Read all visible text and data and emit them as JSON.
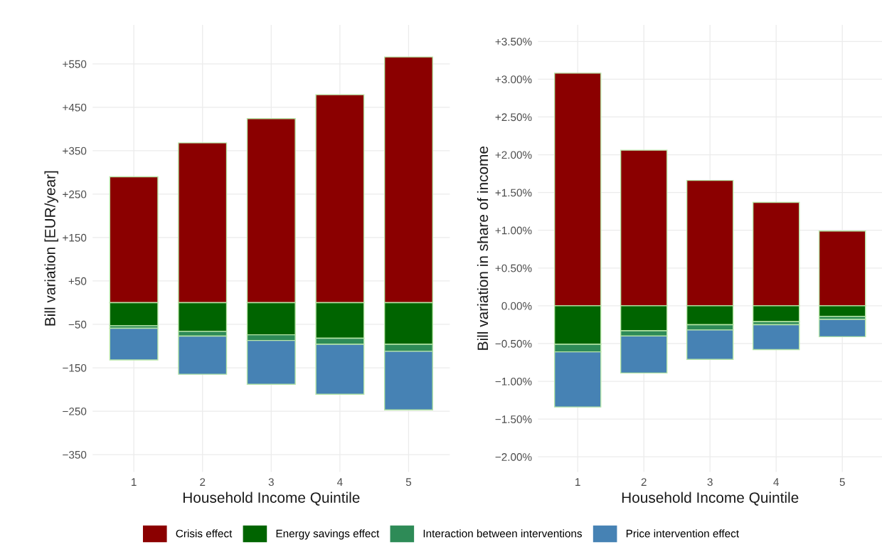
{
  "chart_data": [
    {
      "type": "bar",
      "stacked": true,
      "xlabel": "Household Income Quintile",
      "ylabel": "Bill variation [EUR/year]",
      "categories": [
        "1",
        "2",
        "3",
        "4",
        "5"
      ],
      "series": [
        {
          "name": "Crisis effect",
          "color": "#8b0000",
          "values": [
            290,
            368,
            424,
            479,
            566
          ]
        },
        {
          "name": "Energy savings effect",
          "color": "#006400",
          "values": [
            -53,
            -66,
            -74,
            -82,
            -96
          ]
        },
        {
          "name": "Interaction between interventions",
          "color": "#2e8b57",
          "values": [
            -6,
            -11,
            -13,
            -14,
            -16
          ]
        },
        {
          "name": "Price intervention effect",
          "color": "#4682b4",
          "values": [
            -73,
            -88,
            -101,
            -115,
            -135
          ]
        }
      ],
      "ylim": [
        -390,
        640
      ],
      "yticks": [
        {
          "value": 550,
          "label": "+550"
        },
        {
          "value": 450,
          "label": "+450"
        },
        {
          "value": 350,
          "label": "+350"
        },
        {
          "value": 250,
          "label": "+250"
        },
        {
          "value": 150,
          "label": "+150"
        },
        {
          "value": 50,
          "label": "+50"
        },
        {
          "value": -50,
          "label": "−50"
        },
        {
          "value": -150,
          "label": "−150"
        },
        {
          "value": -250,
          "label": "−250"
        },
        {
          "value": -350,
          "label": "−350"
        }
      ],
      "grid": true,
      "legend": "bottom"
    },
    {
      "type": "bar",
      "stacked": true,
      "xlabel": "Household Income Quintile",
      "ylabel": "Bill variation in share of income",
      "categories": [
        "1",
        "2",
        "3",
        "4",
        "5"
      ],
      "series": [
        {
          "name": "Crisis effect",
          "color": "#8b0000",
          "values": [
            3.08,
            2.06,
            1.66,
            1.37,
            0.99
          ]
        },
        {
          "name": "Energy savings effect",
          "color": "#006400",
          "values": [
            -0.51,
            -0.33,
            -0.25,
            -0.21,
            -0.14
          ]
        },
        {
          "name": "Interaction between interventions",
          "color": "#2e8b57",
          "values": [
            -0.1,
            -0.07,
            -0.07,
            -0.04,
            -0.04
          ]
        },
        {
          "name": "Price intervention effect",
          "color": "#4682b4",
          "values": [
            -0.73,
            -0.49,
            -0.39,
            -0.33,
            -0.23
          ]
        }
      ],
      "ylim": [
        -2.2,
        3.72
      ],
      "yticks": [
        {
          "value": 3.5,
          "label": "+3.50%"
        },
        {
          "value": 3.0,
          "label": "+3.00%"
        },
        {
          "value": 2.5,
          "label": "+2.50%"
        },
        {
          "value": 2.0,
          "label": "+2.00%"
        },
        {
          "value": 1.5,
          "label": "+1.50%"
        },
        {
          "value": 1.0,
          "label": "+1.00%"
        },
        {
          "value": 0.5,
          "label": "+0.50%"
        },
        {
          "value": 0,
          "label": "0.00%"
        },
        {
          "value": -0.5,
          "label": "−0.50%"
        },
        {
          "value": -1.0,
          "label": "−1.00%"
        },
        {
          "value": -1.5,
          "label": "−1.50%"
        },
        {
          "value": -2.0,
          "label": "−2.00%"
        }
      ],
      "grid": true
    }
  ]
}
